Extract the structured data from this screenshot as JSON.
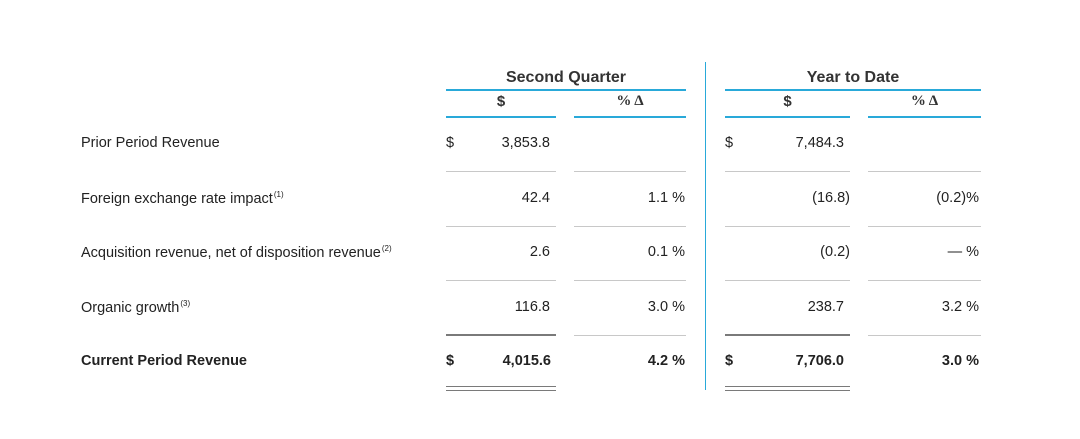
{
  "header": {
    "q2": "Second Quarter",
    "ytd": "Year to Date",
    "dollar": "$",
    "pct_change": "% Δ"
  },
  "rows": [
    {
      "label": "Prior Period Revenue",
      "sup": "",
      "q2_cur": "$",
      "q2_val": "3,853.8",
      "q2_pct": "",
      "ytd_cur": "$",
      "ytd_val": "7,484.3",
      "ytd_pct": ""
    },
    {
      "label": "Foreign exchange rate impact",
      "sup": "(1)",
      "q2_cur": "",
      "q2_val": "42.4",
      "q2_pct": "1.1 %",
      "ytd_cur": "",
      "ytd_val": "(16.8)",
      "ytd_pct": "(0.2)%"
    },
    {
      "label": "Acquisition revenue, net of disposition revenue",
      "sup": "(2)",
      "q2_cur": "",
      "q2_val": "2.6",
      "q2_pct": "0.1 %",
      "ytd_cur": "",
      "ytd_val": "(0.2)",
      "ytd_pct": "— %"
    },
    {
      "label": "Organic growth",
      "sup": "(3)",
      "q2_cur": "",
      "q2_val": "116.8",
      "q2_pct": "3.0 %",
      "ytd_cur": "",
      "ytd_val": "238.7",
      "ytd_pct": "3.2 %"
    },
    {
      "label": "Current Period Revenue",
      "sup": "",
      "q2_cur": "$",
      "q2_val": "4,015.6",
      "q2_pct": "4.2 %",
      "ytd_cur": "$",
      "ytd_val": "7,706.0",
      "ytd_pct": "3.0 %"
    }
  ],
  "colors": {
    "accent": "#29a9d9",
    "rule": "#c8c8c8",
    "total_rule": "#7a7a7a"
  }
}
